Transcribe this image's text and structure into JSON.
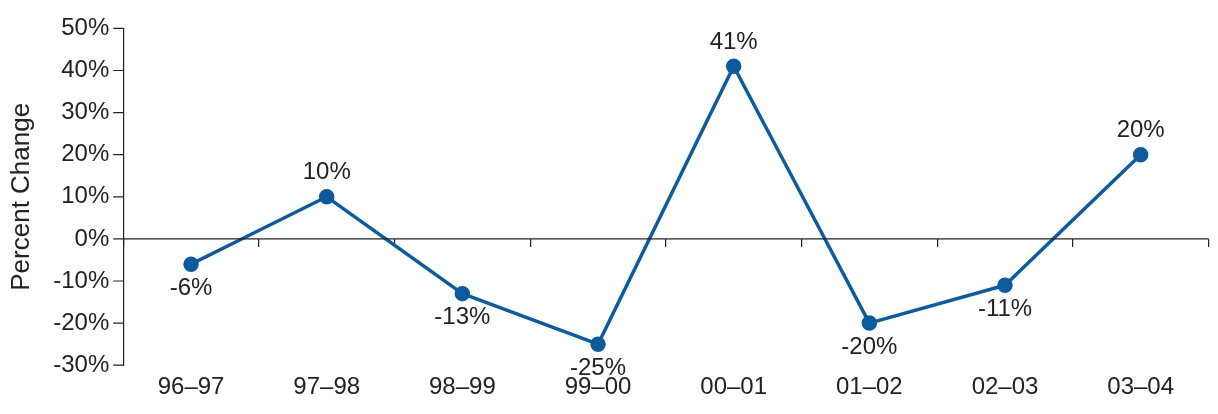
{
  "chart_data": {
    "type": "line",
    "ylabel": "Percent Change",
    "categories": [
      "96–97",
      "97–98",
      "98–99",
      "99–00",
      "00–01",
      "01–02",
      "02–03",
      "03–04"
    ],
    "series": [
      {
        "color": "#0e5a9c",
        "values": [
          -6,
          10,
          -13,
          -25,
          41,
          -20,
          -11,
          20
        ],
        "value_labels": [
          "-6%",
          "10%",
          "-13%",
          "-25%",
          "41%",
          "-20%",
          "-11%",
          "20%"
        ]
      }
    ],
    "ylim": [
      -30,
      50
    ],
    "yticks": [
      {
        "value": -30,
        "label": "-30%"
      },
      {
        "value": -20,
        "label": "-20%"
      },
      {
        "value": -10,
        "label": "-10%"
      },
      {
        "value": 0,
        "label": "0%"
      },
      {
        "value": 10,
        "label": "10%"
      },
      {
        "value": 20,
        "label": "20%"
      },
      {
        "value": 30,
        "label": "30%"
      },
      {
        "value": 40,
        "label": "40%"
      },
      {
        "value": 50,
        "label": "50%"
      }
    ],
    "ref_lines": [
      {
        "axis": "y",
        "value": 0,
        "color": "#222222"
      }
    ],
    "grid": false,
    "legend": false,
    "marker": "circle",
    "line_style": "solid"
  }
}
